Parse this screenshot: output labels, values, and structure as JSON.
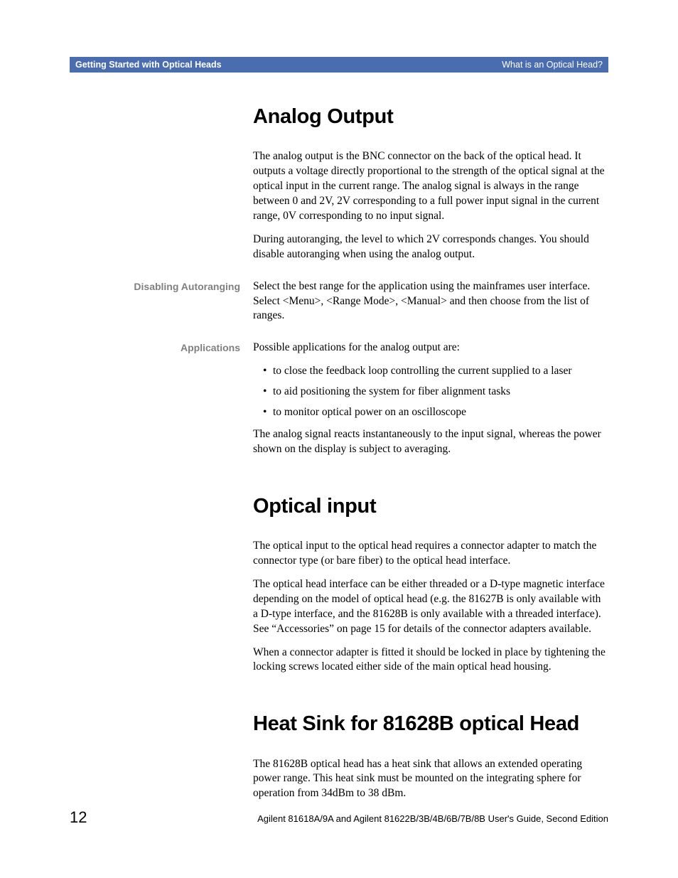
{
  "header": {
    "left": "Getting Started with Optical Heads",
    "right": "What is an Optical Head?"
  },
  "sections": {
    "analog": {
      "title": "Analog Output",
      "p1": "The analog output is the BNC connector on the back of the optical head. It outputs a voltage directly proportional to the strength of the optical signal at the optical input in the current range. The analog signal is always in the range between 0 and 2V, 2V corresponding to a full power input signal in the current range, 0V corresponding to no input signal.",
      "p2": "During autoranging, the level to which 2V corresponds changes. You should disable autoranging when using the analog output.",
      "disabling_label": "Disabling Autoranging",
      "disabling_text": "Select the best range for the application using the mainframes user interface. Select <Menu>, <Range Mode>, <Manual> and then choose from the list of ranges.",
      "applications_label": "Applications",
      "applications_intro": "Possible applications for the analog output are:",
      "bullets": [
        "to close the feedback loop controlling the current supplied to a laser",
        "to aid positioning the system for fiber alignment tasks",
        "to monitor optical power on an oscilloscope"
      ],
      "p_after": "The analog signal reacts instantaneously to the input signal, whereas the power shown on the display is subject to averaging."
    },
    "optical": {
      "title": "Optical input",
      "p1": "The optical input to the optical head requires a connector adapter to match the connector type (or bare fiber) to the optical head interface.",
      "p2": "The optical head interface can be either threaded or a D-type magnetic interface depending on the model of optical head (e.g. the 81627B is only available with a D-type interface, and the 81628B is only available with a threaded interface). See “Accessories” on page 15 for details of the connector adapters available.",
      "p3": "When a connector adapter is fitted it should be locked in place by tightening the locking screws located either side of the main optical head housing."
    },
    "heatsink": {
      "title": "Heat Sink for 81628B optical Head",
      "p1": "The 81628B optical head has a heat sink that allows an extended operating power range. This heat sink must be mounted on the integrating sphere for operation from 34dBm to 38 dBm."
    }
  },
  "footer": {
    "page": "12",
    "text": "Agilent 81618A/9A and Agilent 81622B/3B/4B/6B/7B/8B User's Guide, Second Edition"
  },
  "colors": {
    "header_bg": "#4a6db0",
    "header_fg": "#ffffff",
    "side_label": "#808080",
    "body_text": "#000000",
    "background": "#ffffff"
  },
  "typography": {
    "body_font": "Century Schoolbook",
    "heading_font": "Arial Narrow",
    "side_font": "Arial",
    "body_size_pt": 11.5,
    "heading_size_pt": 22,
    "side_size_pt": 10.5
  }
}
